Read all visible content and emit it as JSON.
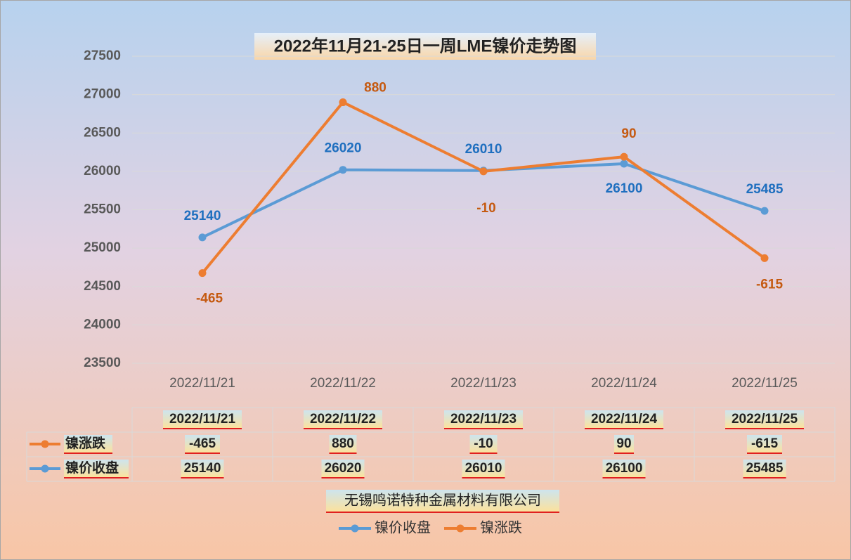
{
  "chart_data": {
    "type": "line",
    "title": "2022年11月21-25日一周LME镍价走势图",
    "categories": [
      "2022/11/21",
      "2022/11/22",
      "2022/11/23",
      "2022/11/24",
      "2022/11/25"
    ],
    "series": [
      {
        "name": "镍价收盘",
        "color": "#5b9bd5",
        "values": [
          25140,
          26020,
          26010,
          26100,
          25485
        ]
      },
      {
        "name": "镍涨跌",
        "color": "#ed7d31",
        "values": [
          -465,
          880,
          -10,
          90,
          -615
        ],
        "stacked": true
      }
    ],
    "ylim": [
      23500,
      27500
    ],
    "yticks": [
      23500,
      24000,
      24500,
      25000,
      25500,
      26000,
      26500,
      27000,
      27500
    ],
    "grid": true,
    "data_table": true,
    "legend": "bottom",
    "source": "无锡鸣诺特种金属材料有限公司"
  }
}
